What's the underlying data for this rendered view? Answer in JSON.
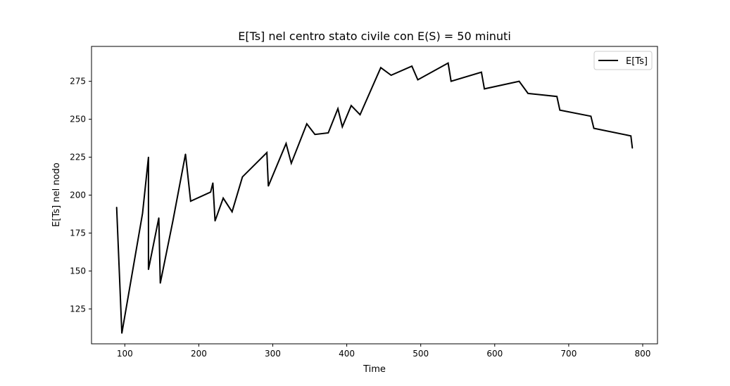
{
  "chart_data": {
    "type": "line",
    "title": "E[Ts] nel centro stato civile con E(S) = 50 minuti",
    "xlabel": "Time",
    "ylabel": "E[Ts] nel nodo",
    "xlim": [
      55,
      820
    ],
    "ylim": [
      102,
      298
    ],
    "xticks": [
      100,
      200,
      300,
      400,
      500,
      600,
      700,
      800
    ],
    "xtick_labels": [
      "100",
      "200",
      "300",
      "400",
      "500",
      "600",
      "700",
      "800"
    ],
    "yticks": [
      125,
      150,
      175,
      200,
      225,
      250,
      275
    ],
    "ytick_labels": [
      "125",
      "150",
      "175",
      "200",
      "225",
      "250",
      "275"
    ],
    "grid": false,
    "legend_position": "top-right",
    "series": [
      {
        "name": "E[Ts]",
        "color": "#000000",
        "x": [
          89,
          96,
          124,
          132,
          132,
          146,
          148,
          165,
          182,
          189,
          216,
          219,
          222,
          233,
          245,
          259,
          292,
          294,
          318,
          325,
          346,
          357,
          375,
          388,
          394,
          406,
          418,
          446,
          460,
          488,
          496,
          537,
          541,
          582,
          586,
          633,
          645,
          684,
          688,
          730,
          734,
          784,
          786
        ],
        "y": [
          192,
          109,
          188,
          225,
          151,
          185,
          142,
          183,
          227,
          196,
          202,
          208,
          183,
          198,
          189,
          212,
          228,
          206,
          234,
          221,
          247,
          240,
          241,
          257,
          245,
          259,
          253,
          284,
          279,
          285,
          276,
          287,
          275,
          281,
          270,
          275,
          267,
          265,
          256,
          252,
          244,
          239,
          231
        ]
      }
    ]
  }
}
